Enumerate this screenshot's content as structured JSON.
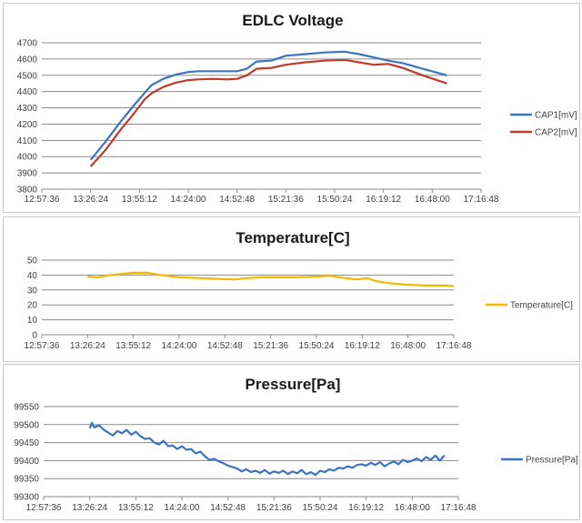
{
  "chart_data": [
    {
      "type": "line",
      "title": "EDLC Voltage",
      "xlabel": "",
      "ylabel": "",
      "ylim": [
        3800,
        4700
      ],
      "yticks": [
        3800,
        3900,
        4000,
        4100,
        4200,
        4300,
        4400,
        4500,
        4600,
        4700
      ],
      "xticks": [
        "12:57:36",
        "13:26:24",
        "13:55:12",
        "14:24:00",
        "14:52:48",
        "15:21:36",
        "15:50:24",
        "16:19:12",
        "16:48:00",
        "17:16:48"
      ],
      "grid": true,
      "legend": "right",
      "series": [
        {
          "name": "CAP1[mV]",
          "color": "#3b74c0",
          "points": [
            [
              1.0,
              3980
            ],
            [
              1.3,
              4090
            ],
            [
              1.6,
              4210
            ],
            [
              1.9,
              4320
            ],
            [
              2.1,
              4390
            ],
            [
              2.25,
              4440
            ],
            [
              2.5,
              4480
            ],
            [
              2.75,
              4505
            ],
            [
              3.0,
              4520
            ],
            [
              3.2,
              4525
            ],
            [
              3.5,
              4525
            ],
            [
              3.8,
              4525
            ],
            [
              4.0,
              4525
            ],
            [
              4.2,
              4540
            ],
            [
              4.4,
              4585
            ],
            [
              4.7,
              4590
            ],
            [
              5.0,
              4620
            ],
            [
              5.4,
              4630
            ],
            [
              5.8,
              4640
            ],
            [
              6.2,
              4645
            ],
            [
              6.5,
              4630
            ],
            [
              6.8,
              4610
            ],
            [
              7.1,
              4590
            ],
            [
              7.4,
              4575
            ],
            [
              7.8,
              4540
            ],
            [
              8.3,
              4500
            ]
          ]
        },
        {
          "name": "CAP2[mV]",
          "color": "#c0392b",
          "points": [
            [
              1.0,
              3940
            ],
            [
              1.3,
              4040
            ],
            [
              1.6,
              4160
            ],
            [
              1.9,
              4270
            ],
            [
              2.1,
              4350
            ],
            [
              2.25,
              4390
            ],
            [
              2.5,
              4430
            ],
            [
              2.75,
              4455
            ],
            [
              3.0,
              4470
            ],
            [
              3.2,
              4475
            ],
            [
              3.5,
              4478
            ],
            [
              3.8,
              4475
            ],
            [
              4.0,
              4478
            ],
            [
              4.2,
              4500
            ],
            [
              4.4,
              4540
            ],
            [
              4.7,
              4545
            ],
            [
              5.0,
              4565
            ],
            [
              5.4,
              4580
            ],
            [
              5.8,
              4590
            ],
            [
              6.2,
              4595
            ],
            [
              6.5,
              4580
            ],
            [
              6.8,
              4565
            ],
            [
              7.1,
              4570
            ],
            [
              7.4,
              4545
            ],
            [
              7.8,
              4500
            ],
            [
              8.3,
              4450
            ]
          ]
        }
      ]
    },
    {
      "type": "line",
      "title": "Temperature[C]",
      "xlabel": "",
      "ylabel": "",
      "ylim": [
        0,
        50
      ],
      "yticks": [
        0,
        10,
        20,
        30,
        40,
        50
      ],
      "xticks": [
        "12:57:36",
        "13:26:24",
        "13:55:12",
        "14:24:00",
        "14:52:48",
        "15:21:36",
        "15:50:24",
        "16:19:12",
        "16:48:00",
        "17:16:48"
      ],
      "grid": true,
      "legend": "right",
      "series": [
        {
          "name": "Temperature[C]",
          "color": "#f5b800",
          "points": [
            [
              1.0,
              39
            ],
            [
              1.2,
              38.5
            ],
            [
              1.5,
              40
            ],
            [
              1.8,
              41
            ],
            [
              2.0,
              41.5
            ],
            [
              2.3,
              41.5
            ],
            [
              2.6,
              40
            ],
            [
              3.0,
              38.5
            ],
            [
              3.4,
              38
            ],
            [
              3.8,
              37.5
            ],
            [
              4.2,
              37
            ],
            [
              4.5,
              38
            ],
            [
              4.8,
              38.5
            ],
            [
              5.2,
              38.5
            ],
            [
              5.6,
              38.5
            ],
            [
              6.0,
              39
            ],
            [
              6.3,
              39.5
            ],
            [
              6.6,
              38
            ],
            [
              6.9,
              37
            ],
            [
              7.1,
              38
            ],
            [
              7.3,
              36
            ],
            [
              7.6,
              34.5
            ],
            [
              8.0,
              33.5
            ],
            [
              8.4,
              33
            ],
            [
              8.8,
              33
            ],
            [
              9.0,
              32.5
            ]
          ]
        }
      ]
    },
    {
      "type": "line",
      "title": "Pressure[Pa]",
      "xlabel": "",
      "ylabel": "",
      "ylim": [
        99300,
        99550
      ],
      "yticks": [
        99300,
        99350,
        99400,
        99450,
        99500,
        99550
      ],
      "xticks": [
        "12:57:36",
        "13:26:24",
        "13:55:12",
        "14:24:00",
        "14:52:48",
        "15:21:36",
        "15:50:24",
        "16:19:12",
        "16:48:00",
        "17:16:48"
      ],
      "grid": true,
      "legend": "right",
      "series": [
        {
          "name": "Pressure[Pa]",
          "color": "#3b74c0",
          "points": [
            [
              1.0,
              99490
            ],
            [
              1.05,
              99505
            ],
            [
              1.1,
              99492
            ],
            [
              1.2,
              99498
            ],
            [
              1.3,
              99486
            ],
            [
              1.4,
              99478
            ],
            [
              1.5,
              99470
            ],
            [
              1.6,
              99482
            ],
            [
              1.7,
              99476
            ],
            [
              1.8,
              99485
            ],
            [
              1.9,
              99472
            ],
            [
              2.0,
              99480
            ],
            [
              2.1,
              99468
            ],
            [
              2.2,
              99460
            ],
            [
              2.3,
              99462
            ],
            [
              2.4,
              99450
            ],
            [
              2.5,
              99445
            ],
            [
              2.6,
              99455
            ],
            [
              2.7,
              99440
            ],
            [
              2.8,
              99442
            ],
            [
              2.9,
              99432
            ],
            [
              3.0,
              99440
            ],
            [
              3.1,
              99430
            ],
            [
              3.2,
              99432
            ],
            [
              3.3,
              99420
            ],
            [
              3.4,
              99425
            ],
            [
              3.5,
              99412
            ],
            [
              3.6,
              99402
            ],
            [
              3.7,
              99405
            ],
            [
              3.8,
              99398
            ],
            [
              3.9,
              99393
            ],
            [
              4.0,
              99386
            ],
            [
              4.1,
              99382
            ],
            [
              4.2,
              99378
            ],
            [
              4.3,
              99370
            ],
            [
              4.4,
              99376
            ],
            [
              4.5,
              99368
            ],
            [
              4.6,
              99372
            ],
            [
              4.7,
              99366
            ],
            [
              4.8,
              99374
            ],
            [
              4.9,
              99364
            ],
            [
              5.0,
              99370
            ],
            [
              5.1,
              99366
            ],
            [
              5.2,
              99372
            ],
            [
              5.3,
              99363
            ],
            [
              5.4,
              99370
            ],
            [
              5.5,
              99365
            ],
            [
              5.6,
              99374
            ],
            [
              5.7,
              99362
            ],
            [
              5.8,
              99368
            ],
            [
              5.9,
              99360
            ],
            [
              6.0,
              99372
            ],
            [
              6.1,
              99368
            ],
            [
              6.2,
              99376
            ],
            [
              6.3,
              99372
            ],
            [
              6.4,
              99380
            ],
            [
              6.5,
              99378
            ],
            [
              6.6,
              99384
            ],
            [
              6.7,
              99380
            ],
            [
              6.8,
              99388
            ],
            [
              6.9,
              99390
            ],
            [
              7.0,
              99386
            ],
            [
              7.1,
              99394
            ],
            [
              7.2,
              99388
            ],
            [
              7.3,
              99396
            ],
            [
              7.4,
              99384
            ],
            [
              7.5,
              99392
            ],
            [
              7.6,
              99398
            ],
            [
              7.7,
              99390
            ],
            [
              7.8,
              99402
            ],
            [
              7.9,
              99396
            ],
            [
              8.0,
              99400
            ],
            [
              8.1,
              99406
            ],
            [
              8.2,
              99398
            ],
            [
              8.3,
              99410
            ],
            [
              8.4,
              99402
            ],
            [
              8.5,
              99414
            ],
            [
              8.6,
              99400
            ],
            [
              8.7,
              99415
            ]
          ]
        }
      ]
    }
  ]
}
